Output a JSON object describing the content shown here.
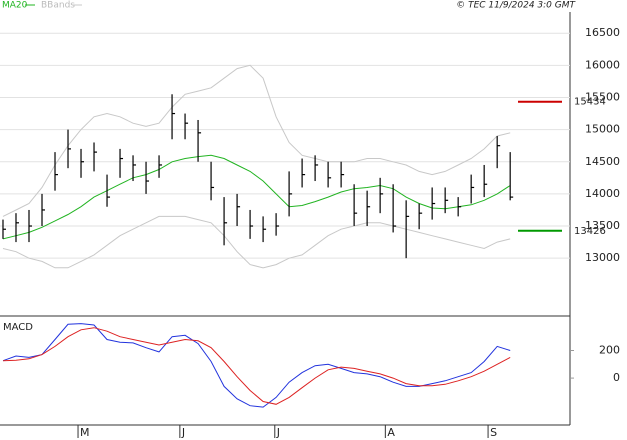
{
  "header": {
    "legend": [
      "MA20",
      "BBands"
    ],
    "copyright": "© TEC 11/9/2024 3:0 GMT"
  },
  "chart_data": [
    {
      "type": "ohlc",
      "xlim": [
        -0.23,
        43.6
      ],
      "ylim": [
        12100,
        16830
      ],
      "yticks": [
        13000,
        13500,
        14000,
        14500,
        15000,
        15500,
        16000,
        16500
      ],
      "grid": true,
      "bar_color": "#000000",
      "high": [
        13600,
        13700,
        13750,
        14000,
        14650,
        15000,
        14700,
        14800,
        14300,
        14700,
        14600,
        14500,
        14600,
        15550,
        15250,
        15150,
        14500,
        13950,
        14000,
        13750,
        13650,
        13700,
        14350,
        14550,
        14600,
        14500,
        14500,
        14150,
        14050,
        14250,
        14150,
        13900,
        13850,
        14100,
        14100,
        13950,
        14300,
        14450,
        14900,
        14650
      ],
      "low": [
        13300,
        13250,
        13250,
        13500,
        14050,
        14400,
        14250,
        14350,
        13800,
        14250,
        14200,
        14000,
        14250,
        14850,
        14850,
        14500,
        13900,
        13200,
        13500,
        13300,
        13250,
        13350,
        13650,
        14100,
        14200,
        14100,
        14100,
        13500,
        13500,
        13700,
        13400,
        13000,
        13450,
        13600,
        13700,
        13650,
        13850,
        13950,
        14400,
        13900
      ],
      "close": [
        13450,
        13550,
        13500,
        13750,
        14300,
        14700,
        14500,
        14650,
        13950,
        14550,
        14450,
        14200,
        14450,
        15250,
        15100,
        14950,
        14100,
        13550,
        13800,
        13500,
        13450,
        13500,
        14000,
        14300,
        14450,
        14250,
        14300,
        13700,
        13800,
        14000,
        13500,
        13650,
        13700,
        13850,
        13900,
        13800,
        14100,
        14150,
        14750,
        13950
      ],
      "series": [
        {
          "name": "MA20",
          "color": "#22b422",
          "values": [
            13300,
            13350,
            13400,
            13480,
            13580,
            13680,
            13800,
            13950,
            14050,
            14150,
            14250,
            14300,
            14380,
            14500,
            14550,
            14580,
            14600,
            14550,
            14450,
            14350,
            14200,
            14000,
            13800,
            13820,
            13880,
            13950,
            14030,
            14080,
            14100,
            14130,
            14080,
            13950,
            13850,
            13780,
            13770,
            13800,
            13830,
            13900,
            14000,
            14130
          ]
        },
        {
          "name": "BBands",
          "color": "#c8c8c8",
          "upper": [
            13650,
            13750,
            13850,
            14100,
            14450,
            14750,
            15000,
            15200,
            15250,
            15200,
            15100,
            15050,
            15100,
            15350,
            15550,
            15600,
            15650,
            15800,
            15950,
            16000,
            15800,
            15200,
            14800,
            14600,
            14550,
            14500,
            14500,
            14500,
            14550,
            14550,
            14500,
            14450,
            14350,
            14300,
            14350,
            14450,
            14550,
            14700,
            14900,
            14950
          ],
          "lower": [
            13150,
            13100,
            13000,
            12950,
            12850,
            12850,
            12950,
            13050,
            13200,
            13350,
            13450,
            13550,
            13650,
            13650,
            13650,
            13600,
            13550,
            13350,
            13100,
            12900,
            12850,
            12900,
            13000,
            13050,
            13200,
            13350,
            13450,
            13500,
            13550,
            13550,
            13500,
            13450,
            13400,
            13350,
            13300,
            13250,
            13200,
            13150,
            13250,
            13300
          ]
        }
      ],
      "levels": [
        {
          "value": 15434,
          "color": "#cc0000"
        },
        {
          "value": 13426,
          "color": "#009900"
        }
      ]
    },
    {
      "type": "line",
      "title": "MACD",
      "xlim": [
        -0.23,
        43.6
      ],
      "ylim": [
        -340,
        450
      ],
      "yticks": [
        0,
        200
      ],
      "xticks": [
        {
          "value": 5.77,
          "label": "M"
        },
        {
          "value": 13.6,
          "label": "J"
        },
        {
          "value": 20.9,
          "label": "J"
        },
        {
          "value": 29.4,
          "label": "A"
        },
        {
          "value": 37.3,
          "label": "S"
        }
      ],
      "lines": [
        {
          "color": "#2233dd",
          "values": [
            126,
            160,
            150,
            170,
            280,
            390,
            395,
            385,
            280,
            260,
            255,
            220,
            190,
            300,
            310,
            250,
            120,
            -60,
            -150,
            -200,
            -210,
            -140,
            -30,
            40,
            90,
            100,
            70,
            40,
            30,
            10,
            -30,
            -60,
            -60,
            -40,
            -20,
            10,
            40,
            120,
            230,
            200
          ]
        },
        {
          "color": "#dd2222",
          "values": [
            126,
            130,
            140,
            170,
            230,
            300,
            350,
            365,
            340,
            300,
            280,
            260,
            240,
            260,
            280,
            270,
            220,
            120,
            10,
            -90,
            -170,
            -190,
            -140,
            -70,
            0,
            60,
            80,
            70,
            50,
            30,
            0,
            -40,
            -55,
            -55,
            -45,
            -20,
            10,
            50,
            100,
            150
          ]
        }
      ]
    }
  ]
}
